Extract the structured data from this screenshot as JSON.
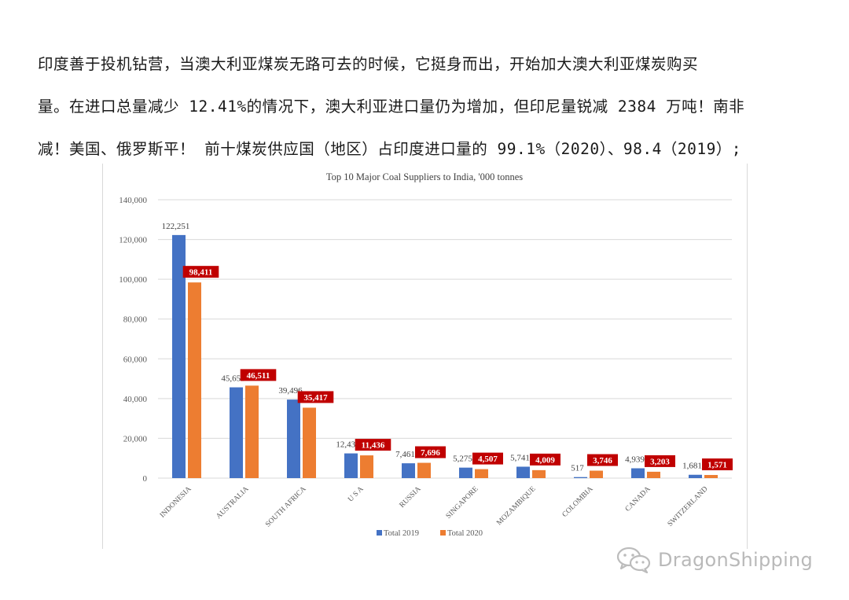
{
  "paragraph": {
    "lines": [
      "印度善于投机钻营，当澳大利亚煤炭无路可去的时候，它挺身而出，开始加大澳大利亚煤炭购买",
      "量。在进口总量减少 12.41%的情况下，澳大利亚进口量仍为增加，但印尼量锐减 2384 万吨！南非",
      "减！美国、俄罗斯平！ 前十煤炭供应国（地区）占印度进口量的 99.1%（2020）、98.4（2019）;"
    ]
  },
  "chart_data": {
    "type": "bar",
    "title": "Top 10 Major Coal Suppliers to India, '000 tonnes",
    "xlabel": "",
    "ylabel": "",
    "ylim": [
      0,
      140000
    ],
    "yticks": [
      0,
      20000,
      40000,
      60000,
      80000,
      100000,
      120000,
      140000
    ],
    "ytick_labels": [
      "0",
      "20,000",
      "40,000",
      "60,000",
      "80,000",
      "100,000",
      "120,000",
      "140,000"
    ],
    "grid": true,
    "legend_position": "bottom",
    "categories": [
      "INDONESIA",
      "AUSTRALIA",
      "SOUTH AFRICA",
      "U S A",
      "RUSSIA",
      "SINGAPORE",
      "MOZAMBIQUE",
      "COLOMBIA",
      "CANADA",
      "SWITZERLAND"
    ],
    "series": [
      {
        "name": "Total 2019",
        "color": "#4472C4",
        "values": [
          122251,
          45655,
          39496,
          12430,
          7461,
          5275,
          5741,
          517,
          4939,
          1681
        ],
        "labels": [
          "122,251",
          "45,655",
          "39,496",
          "12,430",
          "7,461",
          "5,275",
          "5,741",
          "517",
          "4,939",
          "1,681"
        ],
        "label_style": "plain"
      },
      {
        "name": "Total 2020",
        "color": "#ED7D31",
        "values": [
          98411,
          46511,
          35417,
          11436,
          7696,
          4507,
          4009,
          3746,
          3203,
          1571
        ],
        "labels": [
          "98,411",
          "46,511",
          "35,417",
          "11,436",
          "7,696",
          "4,507",
          "4,009",
          "3,746",
          "3,203",
          "1,571"
        ],
        "label_style": "boxed",
        "label_box_color": "#C00000"
      }
    ]
  },
  "watermark": {
    "icon": "wechat-icon",
    "text": "DragonShipping"
  }
}
